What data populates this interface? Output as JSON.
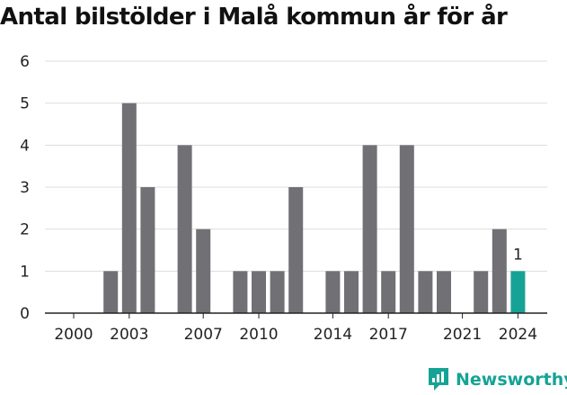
{
  "chart_data": {
    "type": "bar",
    "title": "Antal bilstölder i Malå kommun år för år",
    "categories": [
      "2000",
      "2001",
      "2002",
      "2003",
      "2004",
      "2005",
      "2006",
      "2007",
      "2008",
      "2009",
      "2010",
      "2011",
      "2012",
      "2013",
      "2014",
      "2015",
      "2016",
      "2017",
      "2018",
      "2019",
      "2020",
      "2021",
      "2022",
      "2023",
      "2024"
    ],
    "values": [
      0,
      0,
      1,
      5,
      3,
      0,
      4,
      2,
      0,
      1,
      1,
      1,
      3,
      0,
      1,
      1,
      4,
      1,
      4,
      1,
      1,
      0,
      1,
      2,
      1
    ],
    "x_tick_labels": [
      "2000",
      "2003",
      "2007",
      "2010",
      "2014",
      "2017",
      "2021",
      "2024"
    ],
    "y_ticks": [
      0,
      1,
      2,
      3,
      4,
      5,
      6
    ],
    "ylim": [
      0,
      6
    ],
    "grid": true,
    "highlight": {
      "category": "2024",
      "label": "1"
    },
    "colors": {
      "bar": "#707075",
      "highlight": "#16a395",
      "grid": "#dddddd",
      "axis": "#222222"
    }
  },
  "branding": {
    "name": "Newsworthy",
    "icon": "newsworthy-logo-icon",
    "color": "#16a395"
  }
}
